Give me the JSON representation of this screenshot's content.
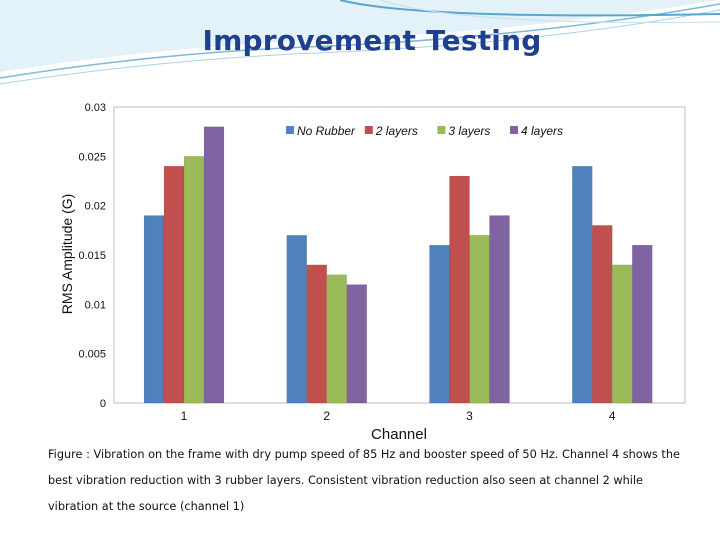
{
  "slide": {
    "title": "Improvement Testing",
    "caption": "Figure : Vibration on the frame with dry pump speed of 85 Hz and booster speed of 50 Hz. Channel 4 shows the best vibration reduction with 3 rubber layers. Consistent vibration reduction also seen at channel 2 while vibration at the source (channel 1)"
  },
  "chart_data": {
    "type": "bar",
    "title": "",
    "xlabel": "Channel",
    "ylabel": "RMS Amplitude (G)",
    "categories": [
      "1",
      "2",
      "3",
      "4"
    ],
    "series": [
      {
        "name": "No Rubber",
        "color": "#4f81bd",
        "values": [
          0.019,
          0.017,
          0.016,
          0.024
        ]
      },
      {
        "name": "2 layers",
        "color": "#c0504d",
        "values": [
          0.024,
          0.014,
          0.023,
          0.018
        ]
      },
      {
        "name": "3 layers",
        "color": "#9bbb59",
        "values": [
          0.025,
          0.013,
          0.017,
          0.014
        ]
      },
      {
        "name": "4 layers",
        "color": "#8064a2",
        "values": [
          0.028,
          0.012,
          0.019,
          0.016
        ]
      }
    ],
    "ylim": [
      0,
      0.03
    ],
    "yticks": [
      "0",
      "0.005",
      "0.01",
      "0.015",
      "0.02",
      "0.025",
      "0.03"
    ],
    "grid": false,
    "legend_position": "top-right"
  }
}
